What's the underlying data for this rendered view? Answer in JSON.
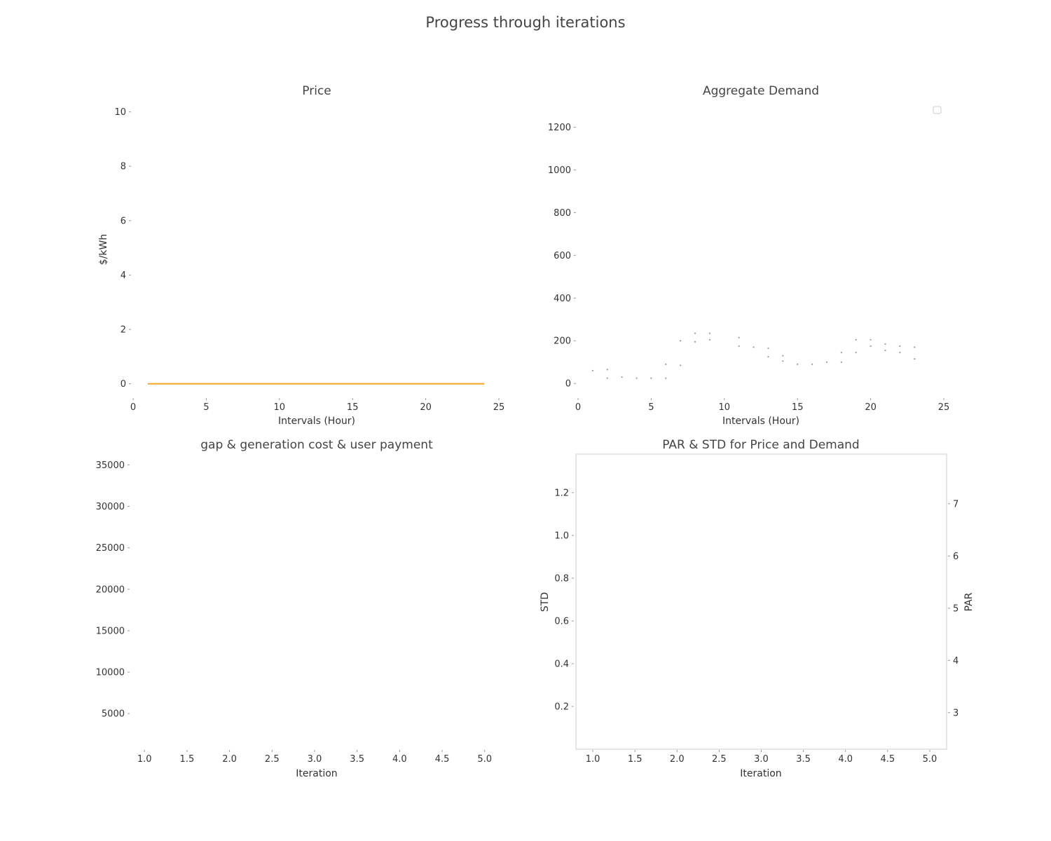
{
  "figure": {
    "title": "Progress through iterations"
  },
  "panels": {
    "price": {
      "title": "Price",
      "xlabel": "Intervals (Hour)",
      "ylabel": "$/kWh"
    },
    "demand": {
      "title": "Aggregate Demand"
    },
    "costs": {
      "title": "gap & generation cost & user payment"
    },
    "par_std": {
      "title": "PAR & STD for Price and Demand",
      "ylabel_left": "STD",
      "ylabel_right": "PAR"
    }
  },
  "colors": {
    "price_line": "#f5a623",
    "std_label": "#1a8a1a",
    "par_label": "#f5a623",
    "demand_points": "#9a9a9a",
    "tick_text": "#333333"
  },
  "chart_data": [
    {
      "type": "line",
      "title": "Price",
      "xlabel": "Intervals (Hour)",
      "ylabel": "$/kWh",
      "xlim": [
        0,
        25
      ],
      "ylim": [
        -0.5,
        10.3
      ],
      "xticks": [
        "0",
        "5",
        "10",
        "15",
        "20",
        "25"
      ],
      "yticks": [
        "0",
        "2",
        "4",
        "6",
        "8",
        "10"
      ],
      "grid": false,
      "series": [
        {
          "color": "#f5a623",
          "x": [
            1,
            2,
            3,
            4,
            5,
            6,
            7,
            8,
            9,
            10,
            11,
            12,
            13,
            14,
            15,
            16,
            17,
            18,
            19,
            20,
            21,
            22,
            23,
            24
          ],
          "values": [
            0,
            0,
            0,
            0,
            0,
            0,
            0,
            0,
            0,
            0,
            0,
            0,
            0,
            0,
            0,
            0,
            0,
            0,
            0,
            0,
            0,
            0,
            0,
            0
          ]
        }
      ]
    },
    {
      "type": "scatter",
      "title": "Aggregate Demand",
      "xlabel": "Intervals (Hour)",
      "ylabel": "",
      "xlim": [
        0,
        25
      ],
      "ylim": [
        -65,
        1310
      ],
      "xticks": [
        "0",
        "5",
        "10",
        "15",
        "20",
        "25"
      ],
      "yticks": [
        "0",
        "200",
        "400",
        "600",
        "800",
        "1000",
        "1200"
      ],
      "grid": false,
      "legend": "top-right",
      "series": [
        {
          "color": "#9a9a9a",
          "x": [
            1,
            2,
            2,
            3,
            4,
            5,
            6,
            6,
            7,
            7,
            8,
            8,
            9,
            9,
            11,
            11,
            12,
            13,
            13,
            14,
            14,
            15,
            16,
            17,
            18,
            18,
            19,
            19,
            20,
            20,
            21,
            21,
            22,
            22,
            23,
            23
          ],
          "values": [
            60,
            65,
            25,
            30,
            25,
            25,
            90,
            25,
            200,
            85,
            235,
            195,
            235,
            205,
            215,
            175,
            170,
            165,
            125,
            130,
            105,
            90,
            90,
            100,
            145,
            100,
            205,
            145,
            205,
            175,
            185,
            155,
            175,
            145,
            170,
            115
          ]
        }
      ]
    },
    {
      "type": "line",
      "title": "gap & generation cost & user payment",
      "xlabel": "Iteration",
      "ylabel": "",
      "xlim": [
        0.85,
        5.2
      ],
      "ylim": [
        700,
        36300
      ],
      "xticks": [
        "1.0",
        "1.5",
        "2.0",
        "2.5",
        "3.0",
        "3.5",
        "4.0",
        "4.5",
        "5.0"
      ],
      "yticks": [
        "5000",
        "10000",
        "15000",
        "20000",
        "25000",
        "30000",
        "35000"
      ],
      "grid": false,
      "series": []
    },
    {
      "type": "line",
      "title": "PAR & STD for Price and Demand",
      "xlabel": "Iteration",
      "ylabel": "STD",
      "ylabel_right": "PAR",
      "xlim": [
        0.8,
        5.2
      ],
      "ylim": [
        0.0,
        1.38
      ],
      "ylim_right": [
        2.3,
        7.95
      ],
      "xticks": [
        "1.0",
        "1.5",
        "2.0",
        "2.5",
        "3.0",
        "3.5",
        "4.0",
        "4.5",
        "5.0"
      ],
      "yticks": [
        "0.2",
        "0.4",
        "0.6",
        "0.8",
        "1.0",
        "1.2"
      ],
      "yticks_right": [
        "3",
        "4",
        "5",
        "6",
        "7"
      ],
      "grid": false,
      "series": []
    }
  ]
}
